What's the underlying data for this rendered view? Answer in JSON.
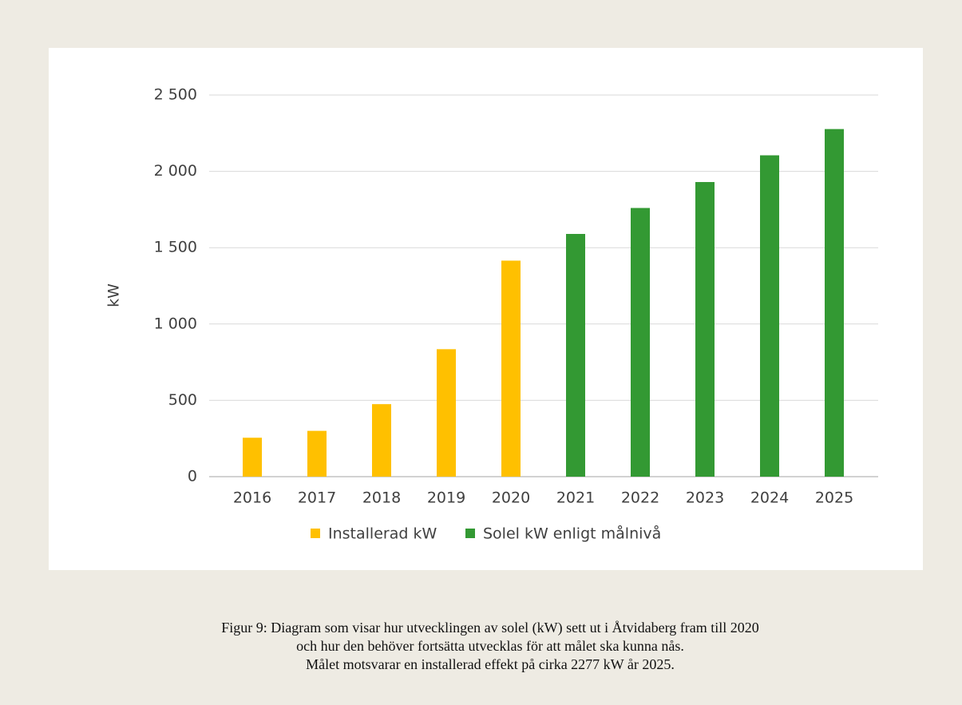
{
  "chart_data": {
    "type": "bar",
    "y_label": "kW",
    "categories": [
      "2016",
      "2017",
      "2018",
      "2019",
      "2020",
      "2021",
      "2022",
      "2023",
      "2024",
      "2025"
    ],
    "series": [
      {
        "name": "Installerad kW",
        "color": "#FFC000",
        "values": [
          255,
          300,
          475,
          835,
          1415,
          null,
          null,
          null,
          null,
          null
        ]
      },
      {
        "name": "Solel kW enligt målnivå",
        "color": "#339933",
        "values": [
          null,
          null,
          null,
          null,
          null,
          1590,
          1760,
          1930,
          2105,
          2277
        ]
      }
    ],
    "ylim": [
      0,
      2500
    ],
    "yticks": [
      0,
      500,
      {
        "value": 1000,
        "label": "1 000"
      },
      {
        "value": 1500,
        "label": "1 500"
      },
      {
        "value": 2000,
        "label": "2 000"
      },
      {
        "value": 2500,
        "label": "2 500"
      }
    ],
    "grid": true,
    "legend": "bottom",
    "caption": [
      "Figur 9: Diagram som visar hur utvecklingen av solel (kW) sett ut i Åtvidaberg fram till 2020",
      "och hur den behöver fortsätta utvecklas för att målet ska kunna nås.",
      "Målet motsvarar en installerad effekt på cirka 2277 kW år 2025."
    ]
  }
}
